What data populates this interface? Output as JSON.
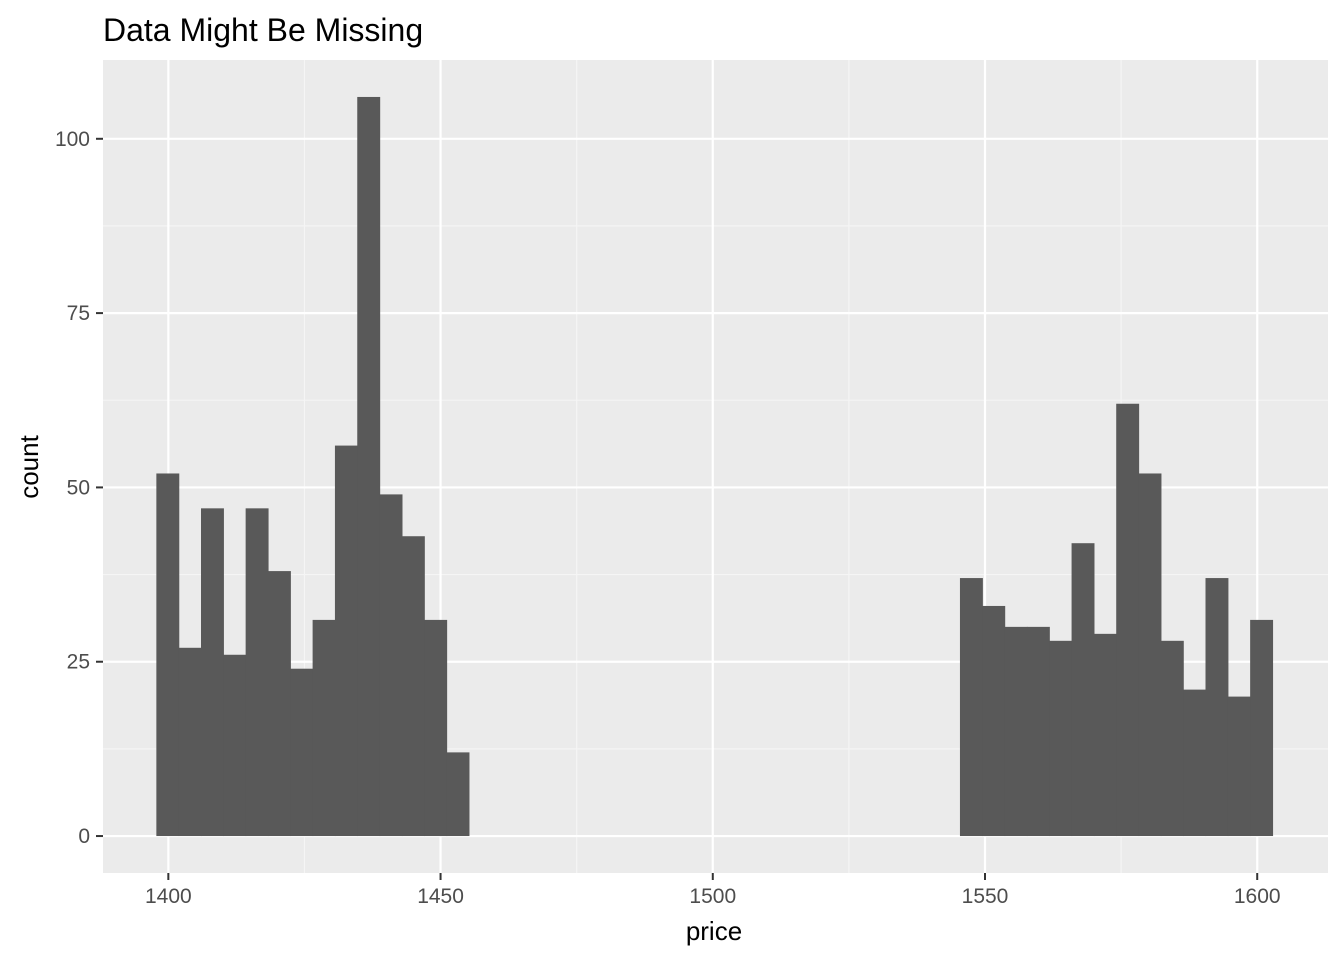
{
  "chart_data": {
    "type": "bar",
    "title": "Data Might Be Missing",
    "xlabel": "price",
    "ylabel": "count",
    "xlim": [
      1388,
      1613
    ],
    "ylim": [
      -5.3,
      111.3
    ],
    "x_ticks": [
      1400,
      1450,
      1500,
      1550,
      1600
    ],
    "x_tick_labels": [
      "1400",
      "1450",
      "1500",
      "1550",
      "1600"
    ],
    "y_ticks": [
      0,
      25,
      50,
      75,
      100
    ],
    "y_tick_labels": [
      "0",
      "25",
      "50",
      "75",
      "100"
    ],
    "grid": true,
    "bin_width": 4.1,
    "bins": [
      {
        "x0": 1397.8,
        "count": 52
      },
      {
        "x0": 1401.9,
        "count": 27
      },
      {
        "x0": 1406.0,
        "count": 47
      },
      {
        "x0": 1410.1,
        "count": 26
      },
      {
        "x0": 1414.2,
        "count": 47
      },
      {
        "x0": 1418.3,
        "count": 38
      },
      {
        "x0": 1422.4,
        "count": 24
      },
      {
        "x0": 1426.5,
        "count": 31
      },
      {
        "x0": 1430.6,
        "count": 56
      },
      {
        "x0": 1434.7,
        "count": 106
      },
      {
        "x0": 1438.8,
        "count": 49
      },
      {
        "x0": 1442.9,
        "count": 43
      },
      {
        "x0": 1447.0,
        "count": 31
      },
      {
        "x0": 1451.1,
        "count": 12
      },
      {
        "x0": 1545.4,
        "count": 37
      },
      {
        "x0": 1549.5,
        "count": 33
      },
      {
        "x0": 1553.6,
        "count": 30
      },
      {
        "x0": 1557.7,
        "count": 30
      },
      {
        "x0": 1561.8,
        "count": 28
      },
      {
        "x0": 1565.9,
        "count": 42
      },
      {
        "x0": 1570.0,
        "count": 29
      },
      {
        "x0": 1574.1,
        "count": 62
      },
      {
        "x0": 1578.2,
        "count": 52
      },
      {
        "x0": 1582.3,
        "count": 28
      },
      {
        "x0": 1586.4,
        "count": 21
      },
      {
        "x0": 1590.5,
        "count": 37
      },
      {
        "x0": 1594.6,
        "count": 20
      },
      {
        "x0": 1598.7,
        "count": 31
      }
    ],
    "colors": {
      "panel_background": "#ebebeb",
      "grid_major": "#ffffff",
      "grid_minor": "#f5f5f5",
      "bar_fill": "#595959",
      "tick_text": "#4d4d4d",
      "tick_mark": "#333333",
      "title_text": "#000000"
    }
  }
}
